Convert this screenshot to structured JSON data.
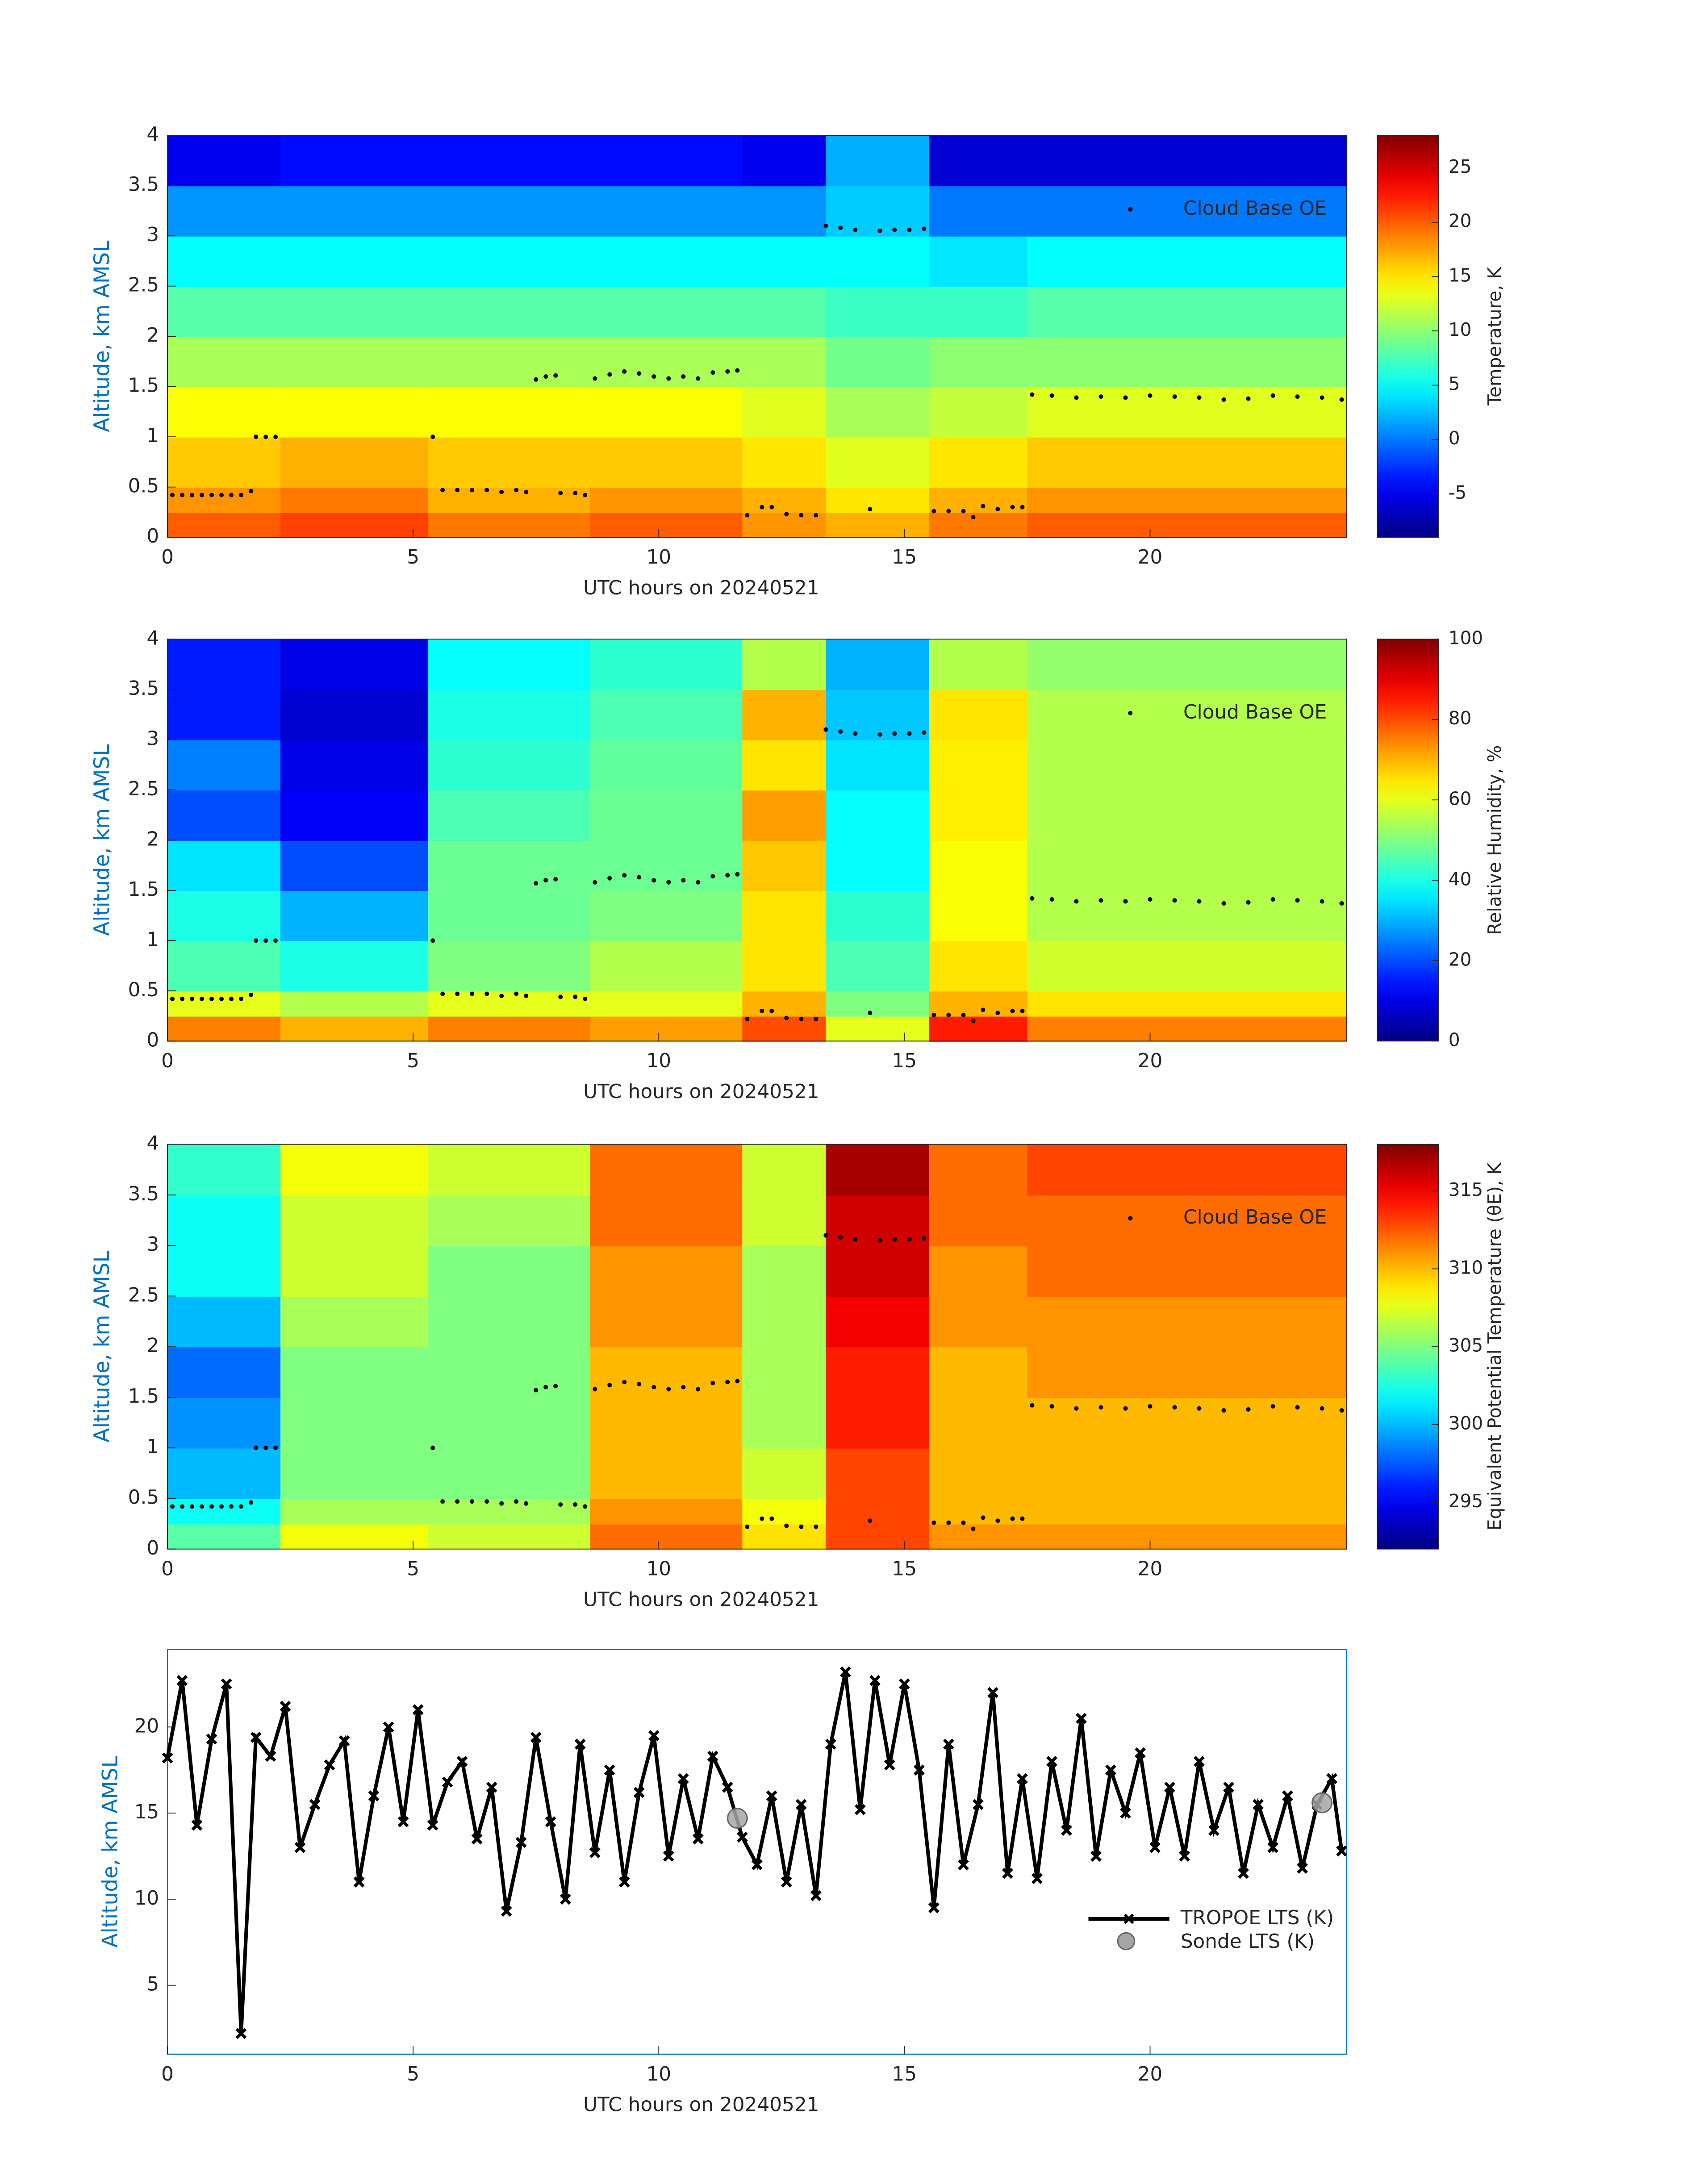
{
  "chart_data": [
    {
      "type": "heatmap",
      "x_label": "UTC hours on 20240521",
      "y_label": "Altitude, km AMSL",
      "xlim": [
        0,
        24
      ],
      "ylim": [
        0,
        4
      ],
      "xticks": [
        0,
        5,
        10,
        15,
        20
      ],
      "yticks": [
        0,
        0.5,
        1,
        1.5,
        2,
        2.5,
        3,
        3.5,
        4
      ],
      "x_edges": [
        0,
        2.3,
        5.3,
        8.6,
        11.7,
        13.4,
        15.5,
        17.5,
        24
      ],
      "y_edges": [
        0,
        0.25,
        0.5,
        1,
        1.5,
        2,
        2.5,
        3,
        3.5,
        4
      ],
      "colormap": "jet",
      "values": [
        [
          20,
          21,
          19,
          20,
          18,
          17,
          19,
          20
        ],
        [
          18,
          19,
          17,
          18,
          17,
          15,
          17,
          18
        ],
        [
          16,
          17,
          16,
          16,
          15,
          13,
          15,
          16
        ],
        [
          14,
          14,
          14,
          14,
          13,
          11,
          12,
          13
        ],
        [
          11,
          11,
          11,
          11,
          11,
          9,
          10,
          10
        ],
        [
          8,
          8,
          8,
          8,
          8,
          7,
          7,
          8
        ],
        [
          5,
          5,
          5,
          5,
          5,
          5,
          4,
          5
        ],
        [
          1,
          1,
          1,
          1,
          1,
          3,
          0,
          0
        ],
        [
          -5,
          -4,
          -4,
          -4,
          -5,
          2,
          -6,
          -6
        ]
      ],
      "colorbar": {
        "label": "Temperature, K",
        "lim": [
          -9,
          28
        ],
        "ticks": [
          -5,
          0,
          5,
          10,
          15,
          20,
          25
        ]
      },
      "series": [
        {
          "name": "Cloud Base OE",
          "color": "#000000",
          "x": [
            0.1,
            0.3,
            0.5,
            0.7,
            0.9,
            1.1,
            1.3,
            1.5,
            1.7,
            1.8,
            2.0,
            2.2,
            5.4,
            5.6,
            5.9,
            6.2,
            6.5,
            6.8,
            7.1,
            7.3,
            7.5,
            7.7,
            7.9,
            8.0,
            8.3,
            8.5,
            8.7,
            9.0,
            9.3,
            9.6,
            9.9,
            10.2,
            10.5,
            10.8,
            11.1,
            11.4,
            11.6,
            11.8,
            12.1,
            12.3,
            12.6,
            12.9,
            13.2,
            13.4,
            13.7,
            14.0,
            14.3,
            14.5,
            14.8,
            15.1,
            15.4,
            15.6,
            15.9,
            16.2,
            16.4,
            16.6,
            16.9,
            17.2,
            17.4,
            17.6,
            18.0,
            18.5,
            19.0,
            19.5,
            20.0,
            20.5,
            21.0,
            21.5,
            22.0,
            22.5,
            23.0,
            23.5,
            23.9
          ],
          "values": [
            0.42,
            0.42,
            0.42,
            0.42,
            0.42,
            0.42,
            0.42,
            0.42,
            0.46,
            1.0,
            1.0,
            1.0,
            1.0,
            0.47,
            0.47,
            0.47,
            0.47,
            0.45,
            0.47,
            0.45,
            1.57,
            1.6,
            1.61,
            0.44,
            0.44,
            0.42,
            1.58,
            1.62,
            1.65,
            1.63,
            1.6,
            1.58,
            1.6,
            1.58,
            1.64,
            1.65,
            1.66,
            0.22,
            0.3,
            0.3,
            0.23,
            0.22,
            0.22,
            3.1,
            3.08,
            3.06,
            0.28,
            3.05,
            3.06,
            3.06,
            3.07,
            0.26,
            0.26,
            0.26,
            0.2,
            0.31,
            0.28,
            0.3,
            0.3,
            1.42,
            1.41,
            1.39,
            1.4,
            1.39,
            1.41,
            1.4,
            1.39,
            1.37,
            1.38,
            1.41,
            1.4,
            1.39,
            1.37
          ]
        }
      ]
    },
    {
      "type": "heatmap",
      "x_label": "UTC hours on 20240521",
      "y_label": "Altitude, km AMSL",
      "xlim": [
        0,
        24
      ],
      "ylim": [
        0,
        4
      ],
      "xticks": [
        0,
        5,
        10,
        15,
        20
      ],
      "yticks": [
        0,
        0.5,
        1,
        1.5,
        2,
        2.5,
        3,
        3.5,
        4
      ],
      "x_edges": [
        0,
        2.3,
        5.3,
        8.6,
        11.7,
        13.4,
        15.5,
        17.5,
        24
      ],
      "y_edges": [
        0,
        0.25,
        0.5,
        1,
        1.5,
        2,
        2.5,
        3,
        3.5,
        4
      ],
      "colormap": "jet",
      "values": [
        [
          75,
          70,
          75,
          72,
          80,
          60,
          85,
          75
        ],
        [
          60,
          55,
          60,
          60,
          70,
          50,
          70,
          65
        ],
        [
          45,
          40,
          50,
          55,
          65,
          45,
          65,
          58
        ],
        [
          40,
          30,
          48,
          50,
          65,
          42,
          62,
          55
        ],
        [
          35,
          20,
          48,
          48,
          68,
          38,
          62,
          55
        ],
        [
          20,
          12,
          45,
          48,
          72,
          38,
          64,
          55
        ],
        [
          25,
          10,
          42,
          47,
          65,
          35,
          64,
          55
        ],
        [
          15,
          8,
          40,
          45,
          70,
          32,
          65,
          55
        ],
        [
          15,
          10,
          38,
          42,
          55,
          30,
          55,
          52
        ]
      ],
      "colorbar": {
        "label": "Relative Humidity, %",
        "lim": [
          0,
          100
        ],
        "ticks": [
          0,
          20,
          40,
          60,
          80,
          100
        ]
      },
      "series": [
        {
          "name": "Cloud Base OE",
          "color": "#000000",
          "x": [
            0.1,
            0.3,
            0.5,
            0.7,
            0.9,
            1.1,
            1.3,
            1.5,
            1.7,
            1.8,
            2.0,
            2.2,
            5.4,
            5.6,
            5.9,
            6.2,
            6.5,
            6.8,
            7.1,
            7.3,
            7.5,
            7.7,
            7.9,
            8.0,
            8.3,
            8.5,
            8.7,
            9.0,
            9.3,
            9.6,
            9.9,
            10.2,
            10.5,
            10.8,
            11.1,
            11.4,
            11.6,
            11.8,
            12.1,
            12.3,
            12.6,
            12.9,
            13.2,
            13.4,
            13.7,
            14.0,
            14.3,
            14.5,
            14.8,
            15.1,
            15.4,
            15.6,
            15.9,
            16.2,
            16.4,
            16.6,
            16.9,
            17.2,
            17.4,
            17.6,
            18.0,
            18.5,
            19.0,
            19.5,
            20.0,
            20.5,
            21.0,
            21.5,
            22.0,
            22.5,
            23.0,
            23.5,
            23.9
          ],
          "values": [
            0.42,
            0.42,
            0.42,
            0.42,
            0.42,
            0.42,
            0.42,
            0.42,
            0.46,
            1.0,
            1.0,
            1.0,
            1.0,
            0.47,
            0.47,
            0.47,
            0.47,
            0.45,
            0.47,
            0.45,
            1.57,
            1.6,
            1.61,
            0.44,
            0.44,
            0.42,
            1.58,
            1.62,
            1.65,
            1.63,
            1.6,
            1.58,
            1.6,
            1.58,
            1.64,
            1.65,
            1.66,
            0.22,
            0.3,
            0.3,
            0.23,
            0.22,
            0.22,
            3.1,
            3.08,
            3.06,
            0.28,
            3.05,
            3.06,
            3.06,
            3.07,
            0.26,
            0.26,
            0.26,
            0.2,
            0.31,
            0.28,
            0.3,
            0.3,
            1.42,
            1.41,
            1.39,
            1.4,
            1.39,
            1.41,
            1.4,
            1.39,
            1.37,
            1.38,
            1.41,
            1.4,
            1.39,
            1.37
          ]
        }
      ]
    },
    {
      "type": "heatmap",
      "x_label": "UTC hours on 20240521",
      "y_label": "Altitude, km AMSL",
      "xlim": [
        0,
        24
      ],
      "ylim": [
        0,
        4
      ],
      "xticks": [
        0,
        5,
        10,
        15,
        20
      ],
      "yticks": [
        0,
        0.5,
        1,
        1.5,
        2,
        2.5,
        3,
        3.5,
        4
      ],
      "x_edges": [
        0,
        2.3,
        5.3,
        8.6,
        11.7,
        13.4,
        15.5,
        17.5,
        24
      ],
      "y_edges": [
        0,
        0.25,
        0.5,
        1,
        1.5,
        2,
        2.5,
        3,
        3.5,
        4
      ],
      "colormap": "jet",
      "values": [
        [
          304,
          308,
          307,
          312,
          309,
          313,
          311,
          311
        ],
        [
          302,
          306,
          306,
          311,
          308,
          313,
          310,
          310
        ],
        [
          300,
          305,
          305,
          310,
          307,
          313,
          310,
          310
        ],
        [
          299,
          305,
          305,
          310,
          306,
          314,
          310,
          310
        ],
        [
          298,
          305,
          305,
          310,
          306,
          314,
          310,
          311
        ],
        [
          300,
          306,
          305,
          311,
          306,
          315,
          311,
          311
        ],
        [
          302,
          307,
          305,
          311,
          306,
          316,
          311,
          312
        ],
        [
          302,
          307,
          306,
          312,
          307,
          316,
          312,
          312
        ],
        [
          303,
          308,
          307,
          312,
          307,
          317,
          312,
          313
        ]
      ],
      "colorbar": {
        "label": "Equivalent Potential Temperature (θE), K",
        "lim": [
          292,
          318
        ],
        "ticks": [
          295,
          300,
          305,
          310,
          315
        ]
      },
      "series": [
        {
          "name": "Cloud Base OE",
          "color": "#000000",
          "x": [
            0.1,
            0.3,
            0.5,
            0.7,
            0.9,
            1.1,
            1.3,
            1.5,
            1.7,
            1.8,
            2.0,
            2.2,
            5.4,
            5.6,
            5.9,
            6.2,
            6.5,
            6.8,
            7.1,
            7.3,
            7.5,
            7.7,
            7.9,
            8.0,
            8.3,
            8.5,
            8.7,
            9.0,
            9.3,
            9.6,
            9.9,
            10.2,
            10.5,
            10.8,
            11.1,
            11.4,
            11.6,
            11.8,
            12.1,
            12.3,
            12.6,
            12.9,
            13.2,
            13.4,
            13.7,
            14.0,
            14.3,
            14.5,
            14.8,
            15.1,
            15.4,
            15.6,
            15.9,
            16.2,
            16.4,
            16.6,
            16.9,
            17.2,
            17.4,
            17.6,
            18.0,
            18.5,
            19.0,
            19.5,
            20.0,
            20.5,
            21.0,
            21.5,
            22.0,
            22.5,
            23.0,
            23.5,
            23.9
          ],
          "values": [
            0.42,
            0.42,
            0.42,
            0.42,
            0.42,
            0.42,
            0.42,
            0.42,
            0.46,
            1.0,
            1.0,
            1.0,
            1.0,
            0.47,
            0.47,
            0.47,
            0.47,
            0.45,
            0.47,
            0.45,
            1.57,
            1.6,
            1.61,
            0.44,
            0.44,
            0.42,
            1.58,
            1.62,
            1.65,
            1.63,
            1.6,
            1.58,
            1.6,
            1.58,
            1.64,
            1.65,
            1.66,
            0.22,
            0.3,
            0.3,
            0.23,
            0.22,
            0.22,
            3.1,
            3.08,
            3.06,
            0.28,
            3.05,
            3.06,
            3.06,
            3.07,
            0.26,
            0.26,
            0.26,
            0.2,
            0.31,
            0.28,
            0.3,
            0.3,
            1.42,
            1.41,
            1.39,
            1.4,
            1.39,
            1.41,
            1.4,
            1.39,
            1.37,
            1.38,
            1.41,
            1.4,
            1.39,
            1.37
          ]
        }
      ]
    },
    {
      "type": "line",
      "x_label": "UTC hours on 20240521",
      "y_label": "Altitude, km AMSL",
      "xlim": [
        0,
        24
      ],
      "ylim": [
        1,
        24.5
      ],
      "xticks": [
        0,
        5,
        10,
        15,
        20
      ],
      "yticks": [
        5,
        10,
        15,
        20
      ],
      "series": [
        {
          "name": "TROPOE LTS (K)",
          "color": "#000000",
          "marker": "x",
          "x": [
            0.0,
            0.3,
            0.6,
            0.9,
            1.2,
            1.5,
            1.8,
            2.1,
            2.4,
            2.7,
            3.0,
            3.3,
            3.6,
            3.9,
            4.2,
            4.5,
            4.8,
            5.1,
            5.4,
            5.7,
            6.0,
            6.3,
            6.6,
            6.9,
            7.2,
            7.5,
            7.8,
            8.1,
            8.4,
            8.7,
            9.0,
            9.3,
            9.6,
            9.9,
            10.2,
            10.5,
            10.8,
            11.1,
            11.4,
            11.7,
            12.0,
            12.3,
            12.6,
            12.9,
            13.2,
            13.5,
            13.8,
            14.1,
            14.4,
            14.7,
            15.0,
            15.3,
            15.6,
            15.9,
            16.2,
            16.5,
            16.8,
            17.1,
            17.4,
            17.7,
            18.0,
            18.3,
            18.6,
            18.9,
            19.2,
            19.5,
            19.8,
            20.1,
            20.4,
            20.7,
            21.0,
            21.3,
            21.6,
            21.9,
            22.2,
            22.5,
            22.8,
            23.1,
            23.4,
            23.7,
            23.9
          ],
          "values": [
            18.2,
            22.7,
            14.3,
            19.3,
            22.5,
            2.2,
            19.4,
            18.3,
            21.2,
            13.0,
            15.5,
            17.8,
            19.2,
            11.0,
            16.0,
            20.0,
            14.5,
            21.0,
            14.3,
            16.8,
            18.0,
            13.5,
            16.5,
            9.3,
            13.3,
            19.4,
            14.5,
            10.0,
            19.0,
            12.7,
            17.5,
            11.0,
            16.2,
            19.5,
            12.5,
            17.0,
            13.5,
            18.3,
            16.5,
            13.6,
            12.0,
            16.0,
            11.0,
            15.5,
            10.2,
            19.0,
            23.2,
            15.2,
            22.7,
            17.8,
            22.5,
            17.5,
            9.5,
            19.0,
            12.0,
            15.5,
            22.0,
            11.5,
            17.0,
            11.2,
            18.0,
            14.0,
            20.5,
            12.5,
            17.5,
            15.0,
            18.5,
            13.0,
            16.5,
            12.5,
            18.0,
            14.0,
            16.5,
            11.5,
            15.5,
            13.0,
            16.0,
            11.8,
            15.5,
            17.0,
            12.8
          ]
        },
        {
          "name": "Sonde LTS (K)",
          "color": "#a6a6a6",
          "marker": "o",
          "x": [
            11.6,
            23.5
          ],
          "values": [
            14.7,
            15.6
          ]
        }
      ]
    }
  ]
}
